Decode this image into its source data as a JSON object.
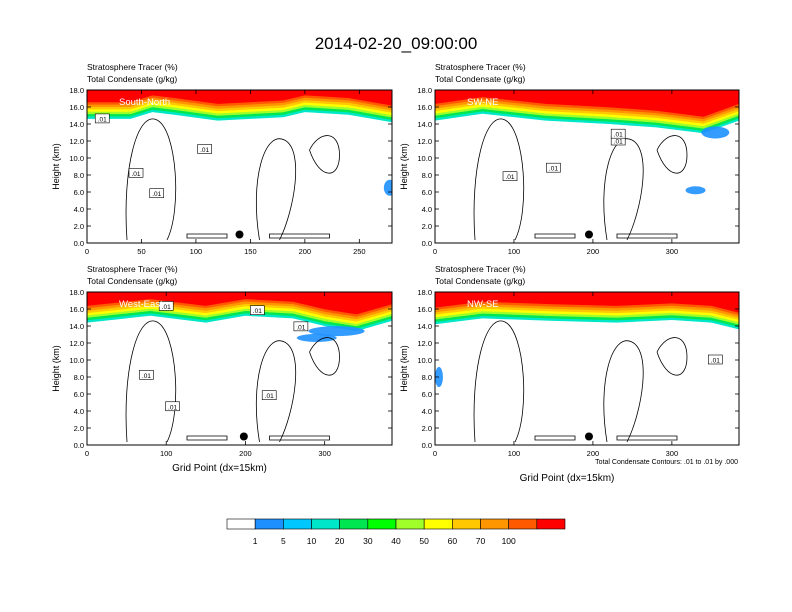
{
  "title": "2014-02-20_09:00:00",
  "chart_data": {
    "type": "heatmap",
    "title": "2014-02-20_09:00:00",
    "fill_variable": "Stratosphere Tracer   (%)",
    "contour_variable": "Total Condensate   (g/kg)",
    "contour_note": "Total Condensate Contours: .01 to .01 by .000",
    "xlabel": "Grid Point (dx=15km)",
    "ylabel": "Height (km)",
    "ylim": [
      0,
      18
    ],
    "y_ticks": [
      "0.0",
      "2.0",
      "4.0",
      "6.0",
      "8.0",
      "10.0",
      "12.0",
      "14.0",
      "16.0",
      "18.0"
    ],
    "grid": false,
    "colorbar": {
      "labels": [
        "1",
        "5",
        "10",
        "20",
        "30",
        "40",
        "50",
        "60",
        "70",
        "100"
      ],
      "colors": [
        "#ffffff",
        "#1e90ff",
        "#00c8ff",
        "#00e6c8",
        "#00e650",
        "#00ff00",
        "#a0ff28",
        "#ffff00",
        "#ffc800",
        "#ff9600",
        "#ff5a00",
        "#ff0000"
      ]
    },
    "panels": [
      {
        "label": "South-North",
        "xlim": [
          0,
          280
        ],
        "x_ticks": [
          "0",
          "50",
          "100",
          "150",
          "200",
          "250"
        ],
        "x_tick_values": [
          0,
          50,
          100,
          150,
          200,
          250
        ],
        "marker": {
          "x": 140,
          "y": 1.0
        },
        "tropopause": [
          [
            0,
            15.2
          ],
          [
            40,
            15.2
          ],
          [
            60,
            16.0
          ],
          [
            80,
            15.7
          ],
          [
            120,
            15.0
          ],
          [
            180,
            15.4
          ],
          [
            200,
            16.0
          ],
          [
            240,
            15.7
          ],
          [
            280,
            14.8
          ]
        ],
        "contour_labels": [
          {
            "text": ".01",
            "x": 14,
            "y": 14.6
          },
          {
            "text": ".01",
            "x": 45,
            "y": 8.2
          },
          {
            "text": ".01",
            "x": 64,
            "y": 5.8
          },
          {
            "text": ".01",
            "x": 108,
            "y": 11.0
          }
        ]
      },
      {
        "label": "SW-NE",
        "xlim": [
          0,
          385
        ],
        "x_ticks": [
          "0",
          "100",
          "200",
          "300"
        ],
        "x_tick_values": [
          0,
          100,
          200,
          300
        ],
        "marker": {
          "x": 195,
          "y": 1.0
        },
        "tropopause": [
          [
            0,
            15.0
          ],
          [
            60,
            15.8
          ],
          [
            140,
            15.0
          ],
          [
            220,
            14.6
          ],
          [
            280,
            14.2
          ],
          [
            340,
            13.5
          ],
          [
            385,
            15.0
          ]
        ],
        "contour_labels": [
          {
            "text": ".01",
            "x": 232,
            "y": 12.0
          },
          {
            "text": ".01",
            "x": 150,
            "y": 8.8
          },
          {
            "text": ".01",
            "x": 95,
            "y": 7.8
          },
          {
            "text": ".01",
            "x": 232,
            "y": 12.8
          }
        ]
      },
      {
        "label": "West-East",
        "xlim": [
          0,
          385
        ],
        "x_ticks": [
          "0",
          "100",
          "200",
          "300"
        ],
        "x_tick_values": [
          0,
          100,
          200,
          300
        ],
        "marker": {
          "x": 198,
          "y": 1.0
        },
        "tropopause": [
          [
            0,
            15.0
          ],
          [
            80,
            15.8
          ],
          [
            150,
            15.0
          ],
          [
            200,
            15.8
          ],
          [
            260,
            15.5
          ],
          [
            300,
            14.6
          ],
          [
            340,
            14.0
          ],
          [
            385,
            15.2
          ]
        ],
        "contour_labels": [
          {
            "text": ".01",
            "x": 100,
            "y": 16.3
          },
          {
            "text": ".01",
            "x": 215,
            "y": 15.8
          },
          {
            "text": ".01",
            "x": 270,
            "y": 13.9
          },
          {
            "text": ".01",
            "x": 75,
            "y": 8.2
          },
          {
            "text": ".01",
            "x": 108,
            "y": 4.5
          },
          {
            "text": ".01",
            "x": 230,
            "y": 5.8
          }
        ]
      },
      {
        "label": "NW-SE",
        "xlim": [
          0,
          385
        ],
        "x_ticks": [
          "0",
          "100",
          "200",
          "300"
        ],
        "x_tick_values": [
          0,
          100,
          200,
          300
        ],
        "marker": {
          "x": 195,
          "y": 1.0
        },
        "tropopause": [
          [
            0,
            14.8
          ],
          [
            60,
            15.5
          ],
          [
            150,
            15.2
          ],
          [
            230,
            15.0
          ],
          [
            300,
            15.3
          ],
          [
            350,
            15.0
          ],
          [
            385,
            14.2
          ]
        ],
        "contour_labels": [
          {
            "text": ".01",
            "x": 355,
            "y": 10.0
          }
        ]
      }
    ]
  }
}
